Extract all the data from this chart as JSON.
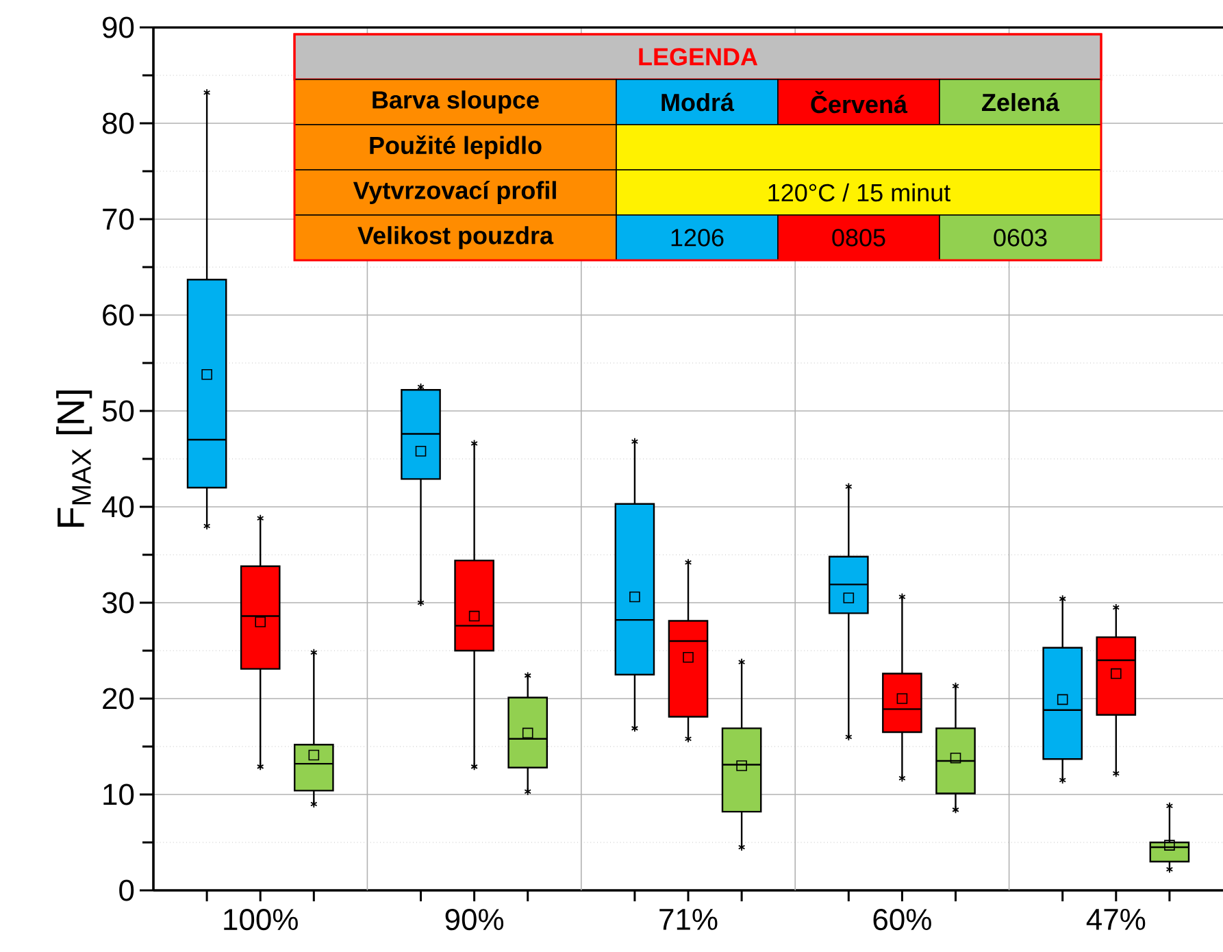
{
  "chart_data": {
    "type": "box",
    "ylabel": "F$_{MAX}$ [N]",
    "categories": [
      "100%",
      "90%",
      "71%",
      "60%",
      "47%"
    ],
    "ylim": [
      0,
      90
    ],
    "yticks": [
      0,
      {
        "value": 5,
        "label": null
      },
      10,
      {
        "value": 15,
        "label": null
      },
      20,
      {
        "value": 25,
        "label": null
      },
      30,
      {
        "value": 35,
        "label": null
      },
      40,
      {
        "value": 45,
        "label": null
      },
      50,
      {
        "value": 55,
        "label": null
      },
      60,
      {
        "value": 65,
        "label": null
      },
      70,
      {
        "value": 75,
        "label": null
      },
      80,
      {
        "value": 85,
        "label": null
      },
      90
    ],
    "grid": true,
    "legend": "top right",
    "legend_title": "LEGENDA",
    "annotations": [
      "Barva sloupce",
      "Použité lepidlo",
      "Vytvrzovací profil",
      "Velikost pouzdra",
      "120°C / 15 minut",
      "1206",
      "0805",
      "0603"
    ],
    "series": [
      {
        "name": "Modrá",
        "color": "#00b0f0",
        "boxes": [
          {
            "low": 38,
            "q1": 42,
            "median": 47,
            "q3": 63.7,
            "high": 83.2,
            "mean": 53.8
          },
          {
            "low": 30,
            "q1": 42.9,
            "median": 47.6,
            "q3": 52.2,
            "high": 52.5,
            "mean": 45.8
          },
          {
            "low": 16.9,
            "q1": 22.5,
            "median": 28.2,
            "q3": 40.3,
            "high": 46.8,
            "mean": 30.6
          },
          {
            "low": 16,
            "q1": 28.9,
            "median": 31.9,
            "q3": 34.8,
            "high": 42.1,
            "mean": 30.5
          },
          {
            "low": 11.5,
            "q1": 13.7,
            "median": 18.8,
            "q3": 25.3,
            "high": 30.4,
            "mean": 19.9
          }
        ]
      },
      {
        "name": "Červená",
        "color": "#ff0000",
        "boxes": [
          {
            "low": 12.9,
            "q1": 23.1,
            "median": 28.6,
            "q3": 33.8,
            "high": 38.8,
            "mean": 28
          },
          {
            "low": 12.9,
            "q1": 25,
            "median": 27.6,
            "q3": 34.4,
            "high": 46.6,
            "mean": 28.6
          },
          {
            "low": 15.8,
            "q1": 18.1,
            "median": 26,
            "q3": 28.1,
            "high": 34.2,
            "mean": 24.3
          },
          {
            "low": 11.7,
            "q1": 16.5,
            "median": 18.9,
            "q3": 22.6,
            "high": 30.6,
            "mean": 20
          },
          {
            "low": 12.2,
            "q1": 18.3,
            "median": 24,
            "q3": 26.4,
            "high": 29.5,
            "mean": 22.6
          }
        ]
      },
      {
        "name": "Zelená",
        "color": "#92d050",
        "boxes": [
          {
            "low": 9,
            "q1": 10.4,
            "median": 13.2,
            "q3": 15.2,
            "high": 24.8,
            "mean": 14.1
          },
          {
            "low": 10.3,
            "q1": 12.8,
            "median": 15.8,
            "q3": 20.1,
            "high": 22.4,
            "mean": 16.4
          },
          {
            "low": 4.5,
            "q1": 8.2,
            "median": 13.1,
            "q3": 16.9,
            "high": 23.8,
            "mean": 13
          },
          {
            "low": 8.4,
            "q1": 10.1,
            "median": 13.5,
            "q3": 16.9,
            "high": 21.3,
            "mean": 13.8
          },
          {
            "low": 2.2,
            "q1": 3,
            "median": 4.5,
            "q3": 5,
            "high": 8.8,
            "mean": 4.7
          }
        ]
      }
    ]
  }
}
